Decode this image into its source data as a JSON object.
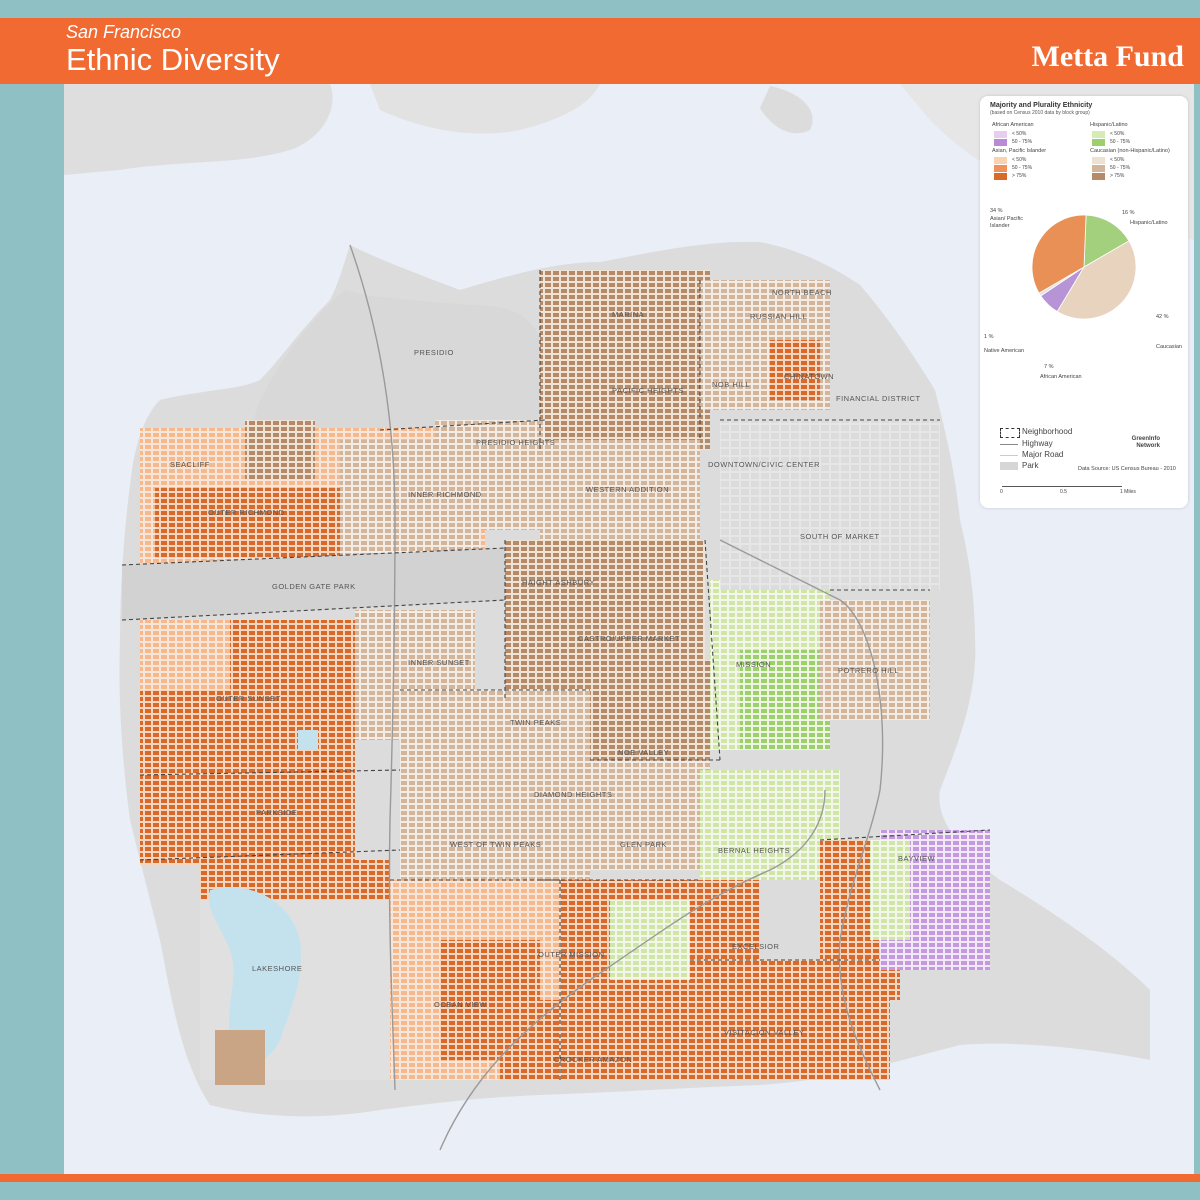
{
  "header": {
    "subtitle": "San Francisco",
    "title": "Ethnic Diversity",
    "brand": "Metta Fund"
  },
  "neighborhoods": [
    "PRESIDIO",
    "MARINA",
    "RUSSIAN HILL",
    "NORTH BEACH",
    "CHINATOWN",
    "NOB HILL",
    "PACIFIC HEIGHTS",
    "PRESIDIO HEIGHTS",
    "FINANCIAL DISTRICT",
    "SEACLIFF",
    "INNER RICHMOND",
    "OUTER RICHMOND",
    "DOWNTOWN/CIVIC CENTER",
    "WESTERN ADDITION",
    "SOUTH OF MARKET",
    "GOLDEN GATE PARK",
    "HAIGHT ASHBURY",
    "CASTRO/UPPER MARKET",
    "INNER SUNSET",
    "OUTER SUNSET",
    "MISSION",
    "POTRERO HILL",
    "TWIN PEAKS",
    "NOE VALLEY",
    "DIAMOND HEIGHTS",
    "PARKSIDE",
    "BERNAL HEIGHTS",
    "WEST OF TWIN PEAKS",
    "GLEN PARK",
    "BAYVIEW",
    "LAKESHORE",
    "OUTER MISSION",
    "EXCELSIOR",
    "OCEAN VIEW",
    "VISITACION VALLEY",
    "CROCKER AMAZON"
  ],
  "legend": {
    "title": "Majority and Plurality Ethnicity",
    "subtitle": "(based on Census 2010 data by block group)",
    "groups": [
      {
        "name": "African American",
        "classes": [
          "< 50%",
          "50 - 75%"
        ],
        "colors": [
          "#e7cdee",
          "#b98ad6"
        ]
      },
      {
        "name": "Hispanic/Latino",
        "classes": [
          "< 50%",
          "50 - 75%"
        ],
        "colors": [
          "#d7ecb4",
          "#9cd06c"
        ]
      },
      {
        "name": "Asian, Pacific Islander",
        "classes": [
          "< 50%",
          "50 - 75%",
          "> 75%"
        ],
        "colors": [
          "#fad2b2",
          "#f0915a",
          "#d9692a"
        ]
      },
      {
        "name": "Caucasian (non-Hispanic/Latino)",
        "classes": [
          "< 50%",
          "50 - 75%",
          "> 75%"
        ],
        "colors": [
          "#ede2d2",
          "#d3b59c",
          "#b58a68"
        ]
      }
    ],
    "pie": {
      "slices": [
        {
          "name": "Hispanic/Latino",
          "pct_label": "16 %",
          "value": 16,
          "color": "#a3d07c"
        },
        {
          "name": "Caucasian",
          "pct_label": "42 %",
          "value": 42,
          "color": "#e8d3bf"
        },
        {
          "name": "African American",
          "pct_label": "7 %",
          "value": 7,
          "color": "#b694d6"
        },
        {
          "name": "Native American",
          "pct_label": "1 %",
          "value": 1,
          "color": "#e2e2e2"
        },
        {
          "name": "Asian/ Pacific Islander",
          "pct_label": "34 %",
          "value": 34,
          "color": "#e89055"
        }
      ]
    },
    "key": {
      "neighborhood": "Neighborhood",
      "highway": "Highway",
      "major_road": "Major Road",
      "park": "Park"
    },
    "logo_text": "GreenInfo Network",
    "source": "Data Source: US Census Bureau - 2010",
    "scale": [
      "0",
      "0.5",
      "1 Miles"
    ]
  }
}
